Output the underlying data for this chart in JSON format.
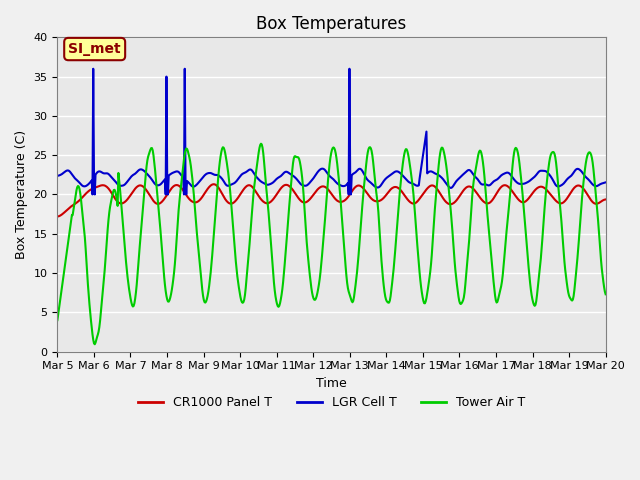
{
  "title": "Box Temperatures",
  "xlabel": "Time",
  "ylabel": "Box Temperature (C)",
  "ylim": [
    0,
    40
  ],
  "background_color": "#e8e8e8",
  "plot_bg_color": "#e8e8e8",
  "grid_color": "white",
  "line_colors": {
    "panel": "#cc0000",
    "cell": "#0000cc",
    "tower": "#00cc00"
  },
  "line_widths": {
    "panel": 1.5,
    "cell": 1.5,
    "tower": 1.5
  },
  "legend_labels": [
    "CR1000 Panel T",
    "LGR Cell T",
    "Tower Air T"
  ],
  "annotation_text": "SI_met",
  "annotation_bg": "#ffff99",
  "annotation_border": "#8B0000",
  "xtick_labels": [
    "Mar 5",
    "Mar 6",
    "Mar 7",
    "Mar 8",
    "Mar 9",
    "Mar 10",
    "Mar 11",
    "Mar 12",
    "Mar 13",
    "Mar 14",
    "Mar 15",
    "Mar 16",
    "Mar 17",
    "Mar 18",
    "Mar 19",
    "Mar 20"
  ],
  "ytick_labels": [
    "0",
    "5",
    "10",
    "15",
    "20",
    "25",
    "30",
    "35",
    "40"
  ]
}
